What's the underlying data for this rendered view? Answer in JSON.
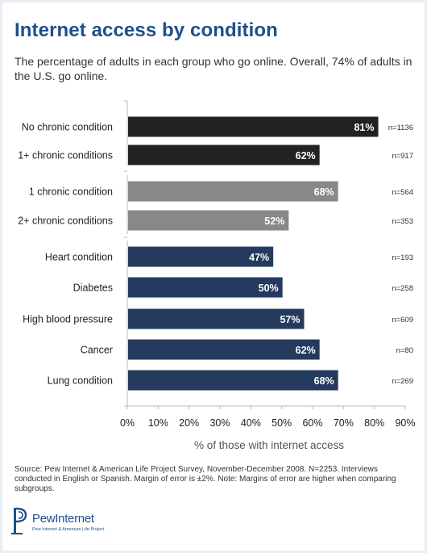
{
  "title": "Internet access by condition",
  "subtitle": "The percentage of adults in each group who go online. Overall, 74% of adults in the U.S. go online.",
  "source": "Source: Pew Internet & American Life Project Survey, November-December 2008. N=2253. Interviews conducted in English or Spanish.  Margin of error is ±2%. Note: Margins of error are higher when comparing subgroups.",
  "logo": {
    "wordmark": "PewInternet",
    "tagline": "Pew Internet & American Life Project"
  },
  "colors": {
    "black": "#222222",
    "gray": "#888888",
    "navy": "#243b5e",
    "title": "#1f4f8b"
  },
  "chart_data": {
    "type": "bar",
    "orientation": "horizontal",
    "title": "Internet access by condition",
    "xlabel": "% of those with internet access",
    "xlim": [
      0,
      90
    ],
    "xticks": [
      "0%",
      "10%",
      "20%",
      "30%",
      "40%",
      "50%",
      "60%",
      "70%",
      "80%",
      "90%"
    ],
    "categories": [
      "No chronic condition",
      "1+ chronic conditions",
      "1 chronic condition",
      "2+ chronic conditions",
      "Heart condition",
      "Diabetes",
      "High blood pressure",
      "Cancer",
      "Lung condition"
    ],
    "values": [
      81,
      62,
      68,
      52,
      47,
      50,
      57,
      62,
      68
    ],
    "value_labels": [
      "81%",
      "62%",
      "68%",
      "52%",
      "47%",
      "50%",
      "57%",
      "62%",
      "68%"
    ],
    "sample_sizes": [
      "n=1136",
      "n=917",
      "n=564",
      "n=353",
      "n=193",
      "n=258",
      "n=609",
      "n=80",
      "n=269"
    ],
    "bar_colors": [
      "#222222",
      "#222222",
      "#888888",
      "#888888",
      "#243b5e",
      "#243b5e",
      "#243b5e",
      "#243b5e",
      "#243b5e"
    ],
    "grid": false
  }
}
